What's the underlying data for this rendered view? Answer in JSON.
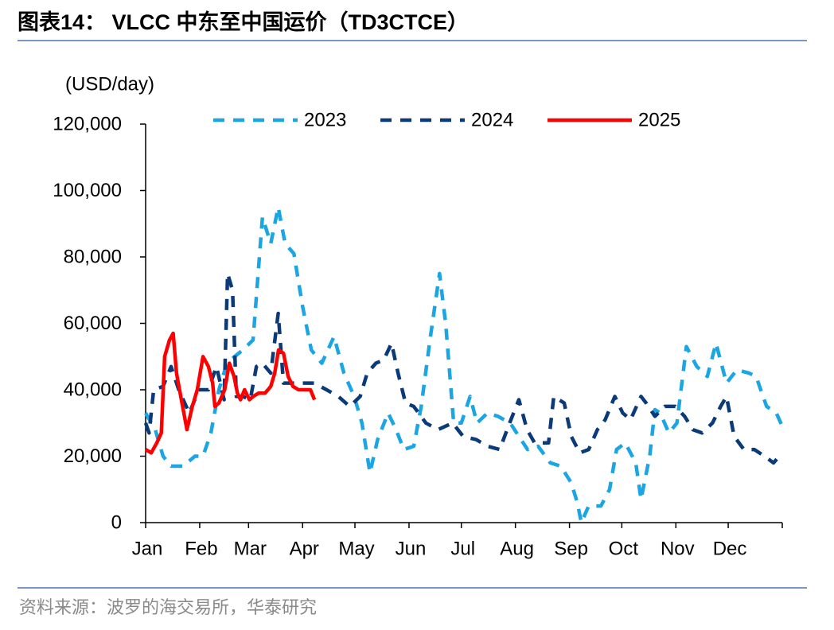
{
  "header": {
    "title": "图表14： VLCC 中东至中国运价（TD3CTCE）"
  },
  "chart_data": {
    "type": "line",
    "y_label": "(USD/day)",
    "xlim": [
      1,
      366
    ],
    "xticks": [
      {
        "value": 1,
        "label": "Jan"
      },
      {
        "value": 32,
        "label": "Feb"
      },
      {
        "value": 60,
        "label": "Mar"
      },
      {
        "value": 91,
        "label": "Apr"
      },
      {
        "value": 121,
        "label": "May"
      },
      {
        "value": 152,
        "label": "Jun"
      },
      {
        "value": 182,
        "label": "Jul"
      },
      {
        "value": 213,
        "label": "Aug"
      },
      {
        "value": 244,
        "label": "Sep"
      },
      {
        "value": 274,
        "label": "Oct"
      },
      {
        "value": 305,
        "label": "Nov"
      },
      {
        "value": 335,
        "label": "Dec"
      }
    ],
    "ylim": [
      0,
      120000
    ],
    "yticks": [
      0,
      {
        "value": 20000,
        "label": "20,000"
      },
      {
        "value": 40000,
        "label": "40,000"
      },
      {
        "value": 60000,
        "label": "60,000"
      },
      {
        "value": 80000,
        "label": "80,000"
      },
      {
        "value": 100000,
        "label": "100,000"
      },
      {
        "value": 120000,
        "label": "120,000"
      }
    ],
    "legend": "top",
    "series": [
      {
        "name": "2023",
        "color": "#1ba6e3",
        "style": "dashed",
        "x": [
          1,
          6.5,
          11,
          15.6,
          22.5,
          29.3,
          33.9,
          38.4,
          43,
          47.6,
          52,
          56.7,
          62.6,
          68,
          72.7,
          77,
          81,
          86,
          91,
          96,
          102,
          109,
          114.7,
          120.6,
          125,
          129.6,
          134,
          140,
          144.6,
          149,
          154.7,
          159,
          164,
          169.5,
          173,
          177.6,
          182,
          187,
          191,
          197,
          203,
          210,
          215,
          220,
          226,
          233,
          239,
          245,
          248.5,
          250.8,
          255,
          262,
          267,
          271,
          276,
          282,
          285,
          290,
          293,
          296,
          301,
          305.6,
          311,
          317,
          323,
          328,
          334,
          340,
          347,
          351,
          357,
          362.6,
          366
        ],
        "values": [
          33000,
          28000,
          20000,
          17000,
          17000,
          20000,
          20000,
          27000,
          40000,
          48000,
          50000,
          52000,
          55000,
          92000,
          84000,
          95000,
          84000,
          81000,
          65000,
          52000,
          48000,
          56000,
          45000,
          38000,
          30000,
          15000,
          25000,
          33000,
          28000,
          22000,
          23000,
          35000,
          55000,
          75000,
          60000,
          30000,
          30000,
          38000,
          30000,
          33000,
          32000,
          30000,
          26000,
          22000,
          23000,
          18000,
          17000,
          12000,
          6000,
          0,
          5000,
          5000,
          10000,
          22000,
          24000,
          18000,
          7000,
          20000,
          34000,
          33000,
          27000,
          30000,
          53000,
          47000,
          44000,
          54000,
          42000,
          46000,
          45000,
          44000,
          35000,
          33000,
          29000
        ]
      },
      {
        "name": "2024",
        "color": "#0b3a78",
        "style": "dashed",
        "x": [
          1,
          3,
          5.6,
          11,
          15.6,
          20,
          26,
          31.6,
          37,
          41.6,
          46,
          48,
          50.8,
          53,
          56.7,
          61,
          64.5,
          68,
          72.7,
          77,
          80,
          85.5,
          91,
          97.8,
          104.7,
          111.5,
          118,
          124,
          128,
          133,
          137.5,
          142,
          145.7,
          150,
          154.7,
          161.7,
          168.6,
          177,
          183,
          190.5,
          197,
          204,
          209.7,
          215,
          219.7,
          224,
          232,
          235,
          241,
          245,
          249.9,
          255,
          260,
          264.5,
          270,
          274.5,
          279,
          285,
          288,
          293,
          298.7,
          304.7,
          310,
          314.7,
          320,
          326,
          330.7,
          334,
          338.4,
          344,
          350,
          355.8,
          361,
          366
        ],
        "values": [
          30000,
          27000,
          40000,
          41000,
          47000,
          40000,
          33000,
          40000,
          40000,
          47000,
          37000,
          75000,
          70000,
          38000,
          38000,
          37000,
          47000,
          48000,
          45000,
          63000,
          42000,
          42000,
          42000,
          42000,
          40000,
          38000,
          35000,
          38000,
          45000,
          48000,
          49000,
          54000,
          45000,
          36000,
          35000,
          30000,
          28000,
          30000,
          26000,
          25000,
          23000,
          22000,
          30000,
          37000,
          28000,
          24000,
          24000,
          38000,
          36000,
          26000,
          21000,
          22000,
          28000,
          31000,
          38000,
          33000,
          31000,
          38000,
          36000,
          32000,
          35000,
          35000,
          32000,
          28000,
          27000,
          30000,
          35000,
          38000,
          26000,
          22000,
          22000,
          20000,
          18000,
          21000
        ]
      },
      {
        "name": "2025",
        "color": "#ff0000",
        "style": "solid",
        "x": [
          1,
          4.2,
          7.4,
          10,
          11.9,
          14.7,
          16.8,
          18.7,
          21.5,
          24.7,
          27.8,
          30.6,
          33.9,
          37,
          39.4,
          40.7,
          43,
          46.3,
          49,
          51.7,
          53.6,
          55.4,
          57.7,
          60.5,
          62.6,
          65.8,
          69.5,
          72.7,
          75,
          77.2,
          80,
          82.7,
          85.5,
          88.7,
          93.2,
          95.5,
          97.8
        ],
        "values": [
          22000,
          21000,
          24000,
          27000,
          50000,
          55000,
          57000,
          45000,
          37000,
          28000,
          35000,
          40000,
          50000,
          47000,
          42000,
          35000,
          36000,
          40000,
          48000,
          44000,
          39000,
          37000,
          40000,
          37000,
          38000,
          39000,
          39000,
          41000,
          45000,
          52000,
          51000,
          44000,
          41000,
          40000,
          40000,
          40000,
          37000
        ]
      }
    ]
  },
  "footer": {
    "source": "资料来源：波罗的海交易所，华泰研究"
  }
}
